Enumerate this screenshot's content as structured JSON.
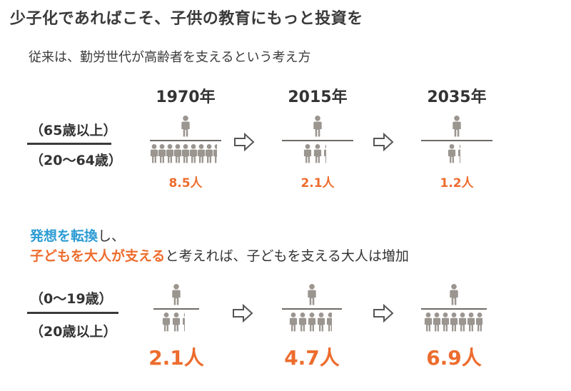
{
  "title": "少子化であればこそ、子供の教育にもっと投資を",
  "subtitle": "従来は、勤労世代が高齢者を支えるという考え方",
  "top_section": {
    "ratio_numerator": "（65歳以上）",
    "ratio_denominator": "（20～64歳）",
    "years": [
      "1970年",
      "2015年",
      "2035年"
    ],
    "values": [
      "8.5人",
      "2.1人",
      "1.2人"
    ],
    "supporter_counts": [
      8.5,
      2.1,
      1.2
    ]
  },
  "message": {
    "line1_highlight": "発想を転換",
    "line1_rest": "し、",
    "line2_highlight": "子どもを大人が支える",
    "line2_rest": "と考えれば、子どもを支える大人は増加"
  },
  "bottom_section": {
    "ratio_numerator": "（0～19歳）",
    "ratio_denominator": "（20歳以上）",
    "values": [
      "2.1人",
      "4.7人",
      "6.9人"
    ],
    "supporter_counts": [
      2.1,
      4.7,
      6.9
    ]
  },
  "colors": {
    "person": "#9b9590",
    "accent_orange": "#ed6c2d",
    "accent_blue": "#2b9bd3"
  },
  "icons": [
    "person-icon",
    "arrow-right-icon"
  ]
}
